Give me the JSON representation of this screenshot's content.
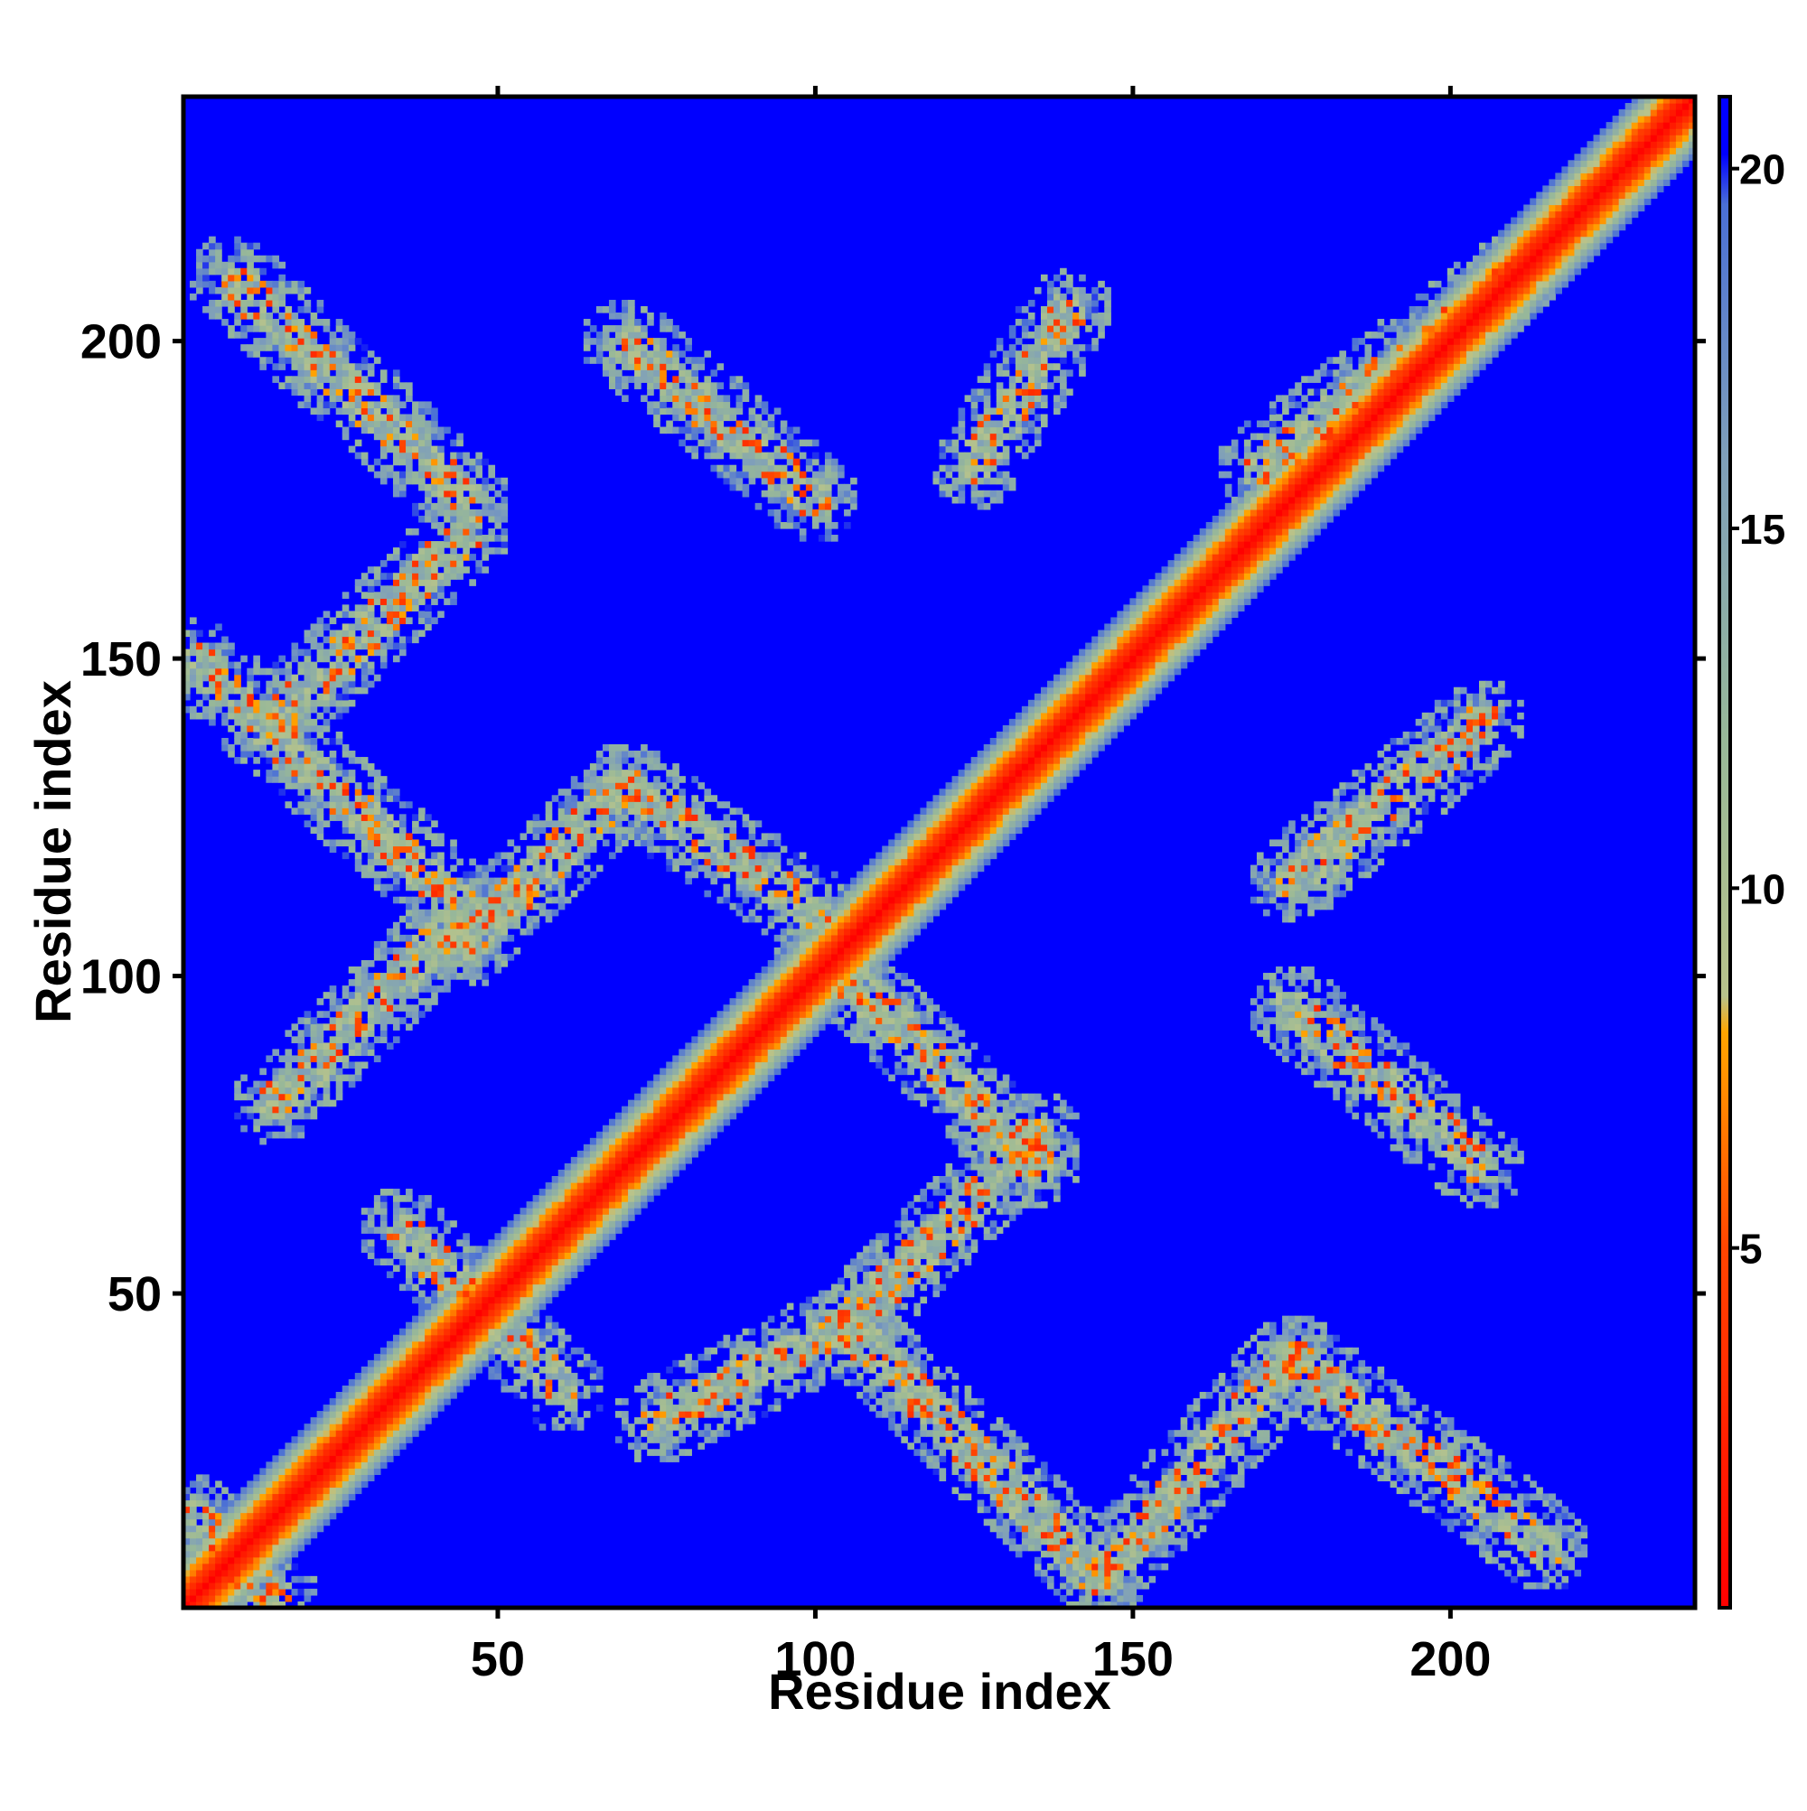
{
  "chart_data": {
    "type": "heatmap",
    "title": "",
    "xlabel": "Residue index",
    "ylabel": "Residue index",
    "n_residues": 238,
    "xlim": [
      1,
      238
    ],
    "ylim": [
      1,
      238
    ],
    "x_ticks": [
      50,
      100,
      150,
      200
    ],
    "y_ticks": [
      50,
      100,
      150,
      200
    ],
    "x_tick_labels": [
      "50",
      "100",
      "150",
      "200"
    ],
    "y_tick_labels": [
      "50",
      "100",
      "150",
      "200"
    ],
    "colorbar": {
      "range": [
        0,
        21
      ],
      "ticks": [
        5,
        10,
        15,
        20
      ],
      "tick_labels": [
        "5",
        "10",
        "15",
        "20"
      ],
      "colors": [
        {
          "value": 0,
          "color": "#ff0000"
        },
        {
          "value": 5,
          "color": "#ff4500"
        },
        {
          "value": 8,
          "color": "#ffa500"
        },
        {
          "value": 8.5,
          "color": "#b8c38c"
        },
        {
          "value": 12,
          "color": "#98b898"
        },
        {
          "value": 16,
          "color": "#7f9fba"
        },
        {
          "value": 19.5,
          "color": "#4a6fd6"
        },
        {
          "value": 20.2,
          "color": "#0000ff"
        }
      ]
    },
    "background_color": "#0000ff",
    "grid": false,
    "diagonal_band": {
      "description": "main diagonal, residue i vs i",
      "half_width_residues": 9
    },
    "contact_bands": [
      {
        "x1": 8,
        "y1": 210,
        "x2": 45,
        "y2": 175
      },
      {
        "x1": 15,
        "y1": 140,
        "x2": 45,
        "y2": 170
      },
      {
        "x1": 2,
        "y1": 150,
        "x2": 45,
        "y2": 110
      },
      {
        "x1": 15,
        "y1": 80,
        "x2": 45,
        "y2": 110
      },
      {
        "x1": 45,
        "y1": 105,
        "x2": 70,
        "y2": 130
      },
      {
        "x1": 70,
        "y1": 130,
        "x2": 100,
        "y2": 110
      },
      {
        "x1": 100,
        "y1": 105,
        "x2": 135,
        "y2": 70
      },
      {
        "x1": 105,
        "y1": 45,
        "x2": 135,
        "y2": 75
      },
      {
        "x1": 75,
        "y1": 30,
        "x2": 105,
        "y2": 45
      },
      {
        "x1": 105,
        "y1": 45,
        "x2": 145,
        "y2": 5
      },
      {
        "x1": 145,
        "y1": 5,
        "x2": 175,
        "y2": 40
      },
      {
        "x1": 175,
        "y1": 40,
        "x2": 215,
        "y2": 10
      },
      {
        "x1": 175,
        "y1": 95,
        "x2": 205,
        "y2": 70
      },
      {
        "x1": 175,
        "y1": 115,
        "x2": 205,
        "y2": 140
      },
      {
        "x1": 70,
        "y1": 200,
        "x2": 100,
        "y2": 175
      },
      {
        "x1": 125,
        "y1": 180,
        "x2": 140,
        "y2": 205
      },
      {
        "x1": 170,
        "y1": 180,
        "x2": 210,
        "y2": 210
      },
      {
        "x1": 35,
        "y1": 60,
        "x2": 60,
        "y2": 35
      },
      {
        "x1": 2,
        "y1": 15,
        "x2": 15,
        "y2": 2
      }
    ]
  }
}
